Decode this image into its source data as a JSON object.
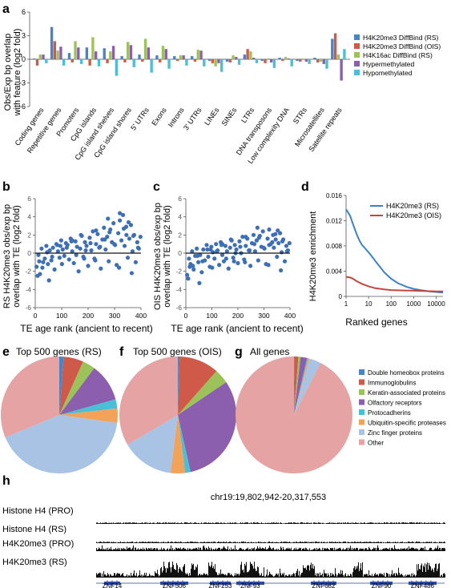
{
  "panel_labels": {
    "a": "a",
    "b": "b",
    "c": "c",
    "d": "d",
    "e": "e",
    "f": "f",
    "g": "g",
    "h": "h"
  },
  "colors": {
    "h4k20_diff_rs": "#4a84c4",
    "h4k20_diff_ois": "#cf5a4a",
    "h4k16ac_rs": "#9cc35a",
    "hypermeth": "#8c5fae",
    "hypometh": "#4bbfd6",
    "scatter": "#3d6fb6",
    "line_rs": "#3c82c6",
    "line_ois": "#c4463d",
    "track": "#111111",
    "gene": "#2c4aa0"
  },
  "chart_data": [
    {
      "id": "a",
      "type": "bar",
      "ylabel": "Obs/Exp bp overlap with feature (log2 fold)",
      "ylim": [
        -6,
        6
      ],
      "yticks": [
        -6,
        -3,
        0,
        3,
        6
      ],
      "categories": [
        "Coding genes",
        "Repetitive genes",
        "Promoters",
        "CpG islands",
        "CpG island shelves",
        "CpG island shores",
        "5' UTRs",
        "Exons",
        "Introns",
        "3' UTRs",
        "LINEs",
        "SINEs",
        "LTRs",
        "DNA transposons",
        "Low complexity DNA",
        "STRs",
        "Microsatellites",
        "Satellite repeats"
      ],
      "series": [
        {
          "name": "H4K20me3 DiffBind (RS)",
          "color": "#4a84c4",
          "values": [
            0.1,
            4.1,
            0.8,
            1.5,
            1.4,
            0.4,
            0.6,
            0.5,
            0.4,
            0.4,
            -0.2,
            -0.3,
            0.6,
            -0.2,
            0.2,
            -0.2,
            0.2,
            2.6
          ]
        },
        {
          "name": "H4K20me3 DiffBind (OIS)",
          "color": "#cf5a4a",
          "values": [
            -0.8,
            2.3,
            -0.4,
            -0.8,
            -0.5,
            -0.4,
            -0.3,
            -0.4,
            -0.2,
            -0.3,
            -0.5,
            -0.4,
            1.3,
            -0.5,
            -0.2,
            -0.3,
            -0.4,
            3.3
          ]
        },
        {
          "name": "H4K16ac DiffBind (RS)",
          "color": "#9cc35a",
          "values": [
            0.6,
            1.1,
            2.3,
            2.8,
            1.0,
            2.2,
            2.6,
            1.7,
            0.5,
            1.2,
            -0.9,
            0.5,
            1.0,
            0.1,
            0.3,
            0.1,
            -0.3,
            0.6
          ]
        },
        {
          "name": "Hypermethylated",
          "color": "#8c5fae",
          "values": [
            0.6,
            1.6,
            1.5,
            1.0,
            1.7,
            1.8,
            1.5,
            1.3,
            0.5,
            1.1,
            -0.5,
            0.3,
            0.2,
            -0.4,
            0.1,
            -0.3,
            -0.6,
            -2.7
          ]
        },
        {
          "name": "Hypomethylated",
          "color": "#4bbfd6",
          "values": [
            -0.5,
            -0.8,
            -0.6,
            -0.9,
            -2.1,
            -1.0,
            -1.7,
            -1.2,
            -0.8,
            -0.9,
            -1.6,
            -0.7,
            -0.5,
            -1.1,
            -0.9,
            -0.6,
            -1.2,
            1.3
          ]
        }
      ]
    },
    {
      "id": "b",
      "type": "scatter",
      "xlabel": "TE age rank (ancient to recent)",
      "ylabel": "RS H4K20me3 obs/exp bp overlap with TE (log2 fold)",
      "xlim": [
        0,
        400
      ],
      "ylim": [
        -6,
        6
      ],
      "xticks": [
        0,
        100,
        200,
        300,
        400
      ],
      "yticks": [
        -6,
        -4,
        -2,
        0,
        2,
        4,
        6
      ],
      "points_x": [
        5,
        12,
        18,
        24,
        30,
        36,
        42,
        48,
        55,
        61,
        67,
        73,
        80,
        86,
        92,
        98,
        104,
        110,
        116,
        122,
        128,
        134,
        140,
        146,
        152,
        158,
        164,
        170,
        176,
        182,
        188,
        194,
        200,
        206,
        212,
        218,
        224,
        230,
        236,
        242,
        248,
        254,
        260,
        266,
        272,
        278,
        284,
        290,
        296,
        302,
        308,
        314,
        320,
        326,
        332,
        338,
        344,
        350,
        356,
        362,
        368,
        374,
        380,
        386,
        392,
        398,
        9,
        27,
        45,
        64,
        83,
        101,
        119,
        137,
        155,
        173,
        191,
        209,
        227,
        245,
        263,
        281,
        299,
        317,
        335,
        353,
        371,
        389,
        15,
        52,
        95,
        140,
        185,
        230,
        275,
        320,
        345,
        365
      ],
      "points_y": [
        -1.5,
        -0.2,
        -2.3,
        0.5,
        -1.0,
        -0.6,
        0.8,
        -1.2,
        0.3,
        -0.8,
        0.6,
        -1.8,
        1.0,
        0.2,
        -0.5,
        1.4,
        0.4,
        -0.3,
        1.1,
        0.9,
        -0.7,
        1.6,
        0.2,
        -1.1,
        1.3,
        0.7,
        -2.0,
        0.5,
        1.9,
        -0.4,
        1.2,
        0.8,
        -1.4,
        1.7,
        0.3,
        2.4,
        -0.6,
        1.0,
        2.1,
        0.6,
        -1.7,
        1.5,
        2.8,
        0.4,
        1.8,
        -0.9,
        2.6,
        1.2,
        3.3,
        0.9,
        -1.3,
        2.2,
        3.6,
        1.4,
        4.2,
        0.8,
        2.9,
        -0.5,
        1.6,
        3.1,
        0.2,
        2.0,
        -1.0,
        1.2,
        0.5,
        1.8,
        -2.5,
        -1.6,
        0.1,
        -0.4,
        0.9,
        -1.2,
        0.6,
        1.3,
        -0.2,
        2.0,
        0.3,
        1.1,
        -0.8,
        0.7,
        1.5,
        2.3,
        1.0,
        -1.6,
        2.7,
        3.4,
        1.9,
        0.6,
        -0.9,
        -3.0,
        0.8,
        1.4,
        -0.6,
        2.5,
        3.8,
        4.4,
        2.0,
        -2.2
      ]
    },
    {
      "id": "c",
      "type": "scatter",
      "xlabel": "TE age rank (ancient to recent)",
      "ylabel": "OIS H4K20me3 obs/exp bp overlap with TE (log2 fold)",
      "xlim": [
        0,
        400
      ],
      "ylim": [
        -6,
        6
      ],
      "xticks": [
        0,
        100,
        200,
        300,
        400
      ],
      "yticks": [
        -6,
        -4,
        -2,
        0,
        2,
        4,
        6
      ],
      "points_x": [
        5,
        12,
        18,
        24,
        30,
        36,
        42,
        48,
        55,
        61,
        67,
        73,
        80,
        86,
        92,
        98,
        104,
        110,
        116,
        122,
        128,
        134,
        140,
        146,
        152,
        158,
        164,
        170,
        176,
        182,
        188,
        194,
        200,
        206,
        212,
        218,
        224,
        230,
        236,
        242,
        248,
        254,
        260,
        266,
        272,
        278,
        284,
        290,
        296,
        302,
        308,
        314,
        320,
        326,
        332,
        338,
        344,
        350,
        356,
        362,
        368,
        374,
        380,
        386,
        392,
        398,
        9,
        27,
        45,
        64,
        83,
        101,
        119,
        137,
        155,
        173,
        191,
        209,
        227,
        245,
        263,
        281,
        299,
        317,
        335,
        353,
        371,
        389,
        15,
        52,
        95,
        140,
        185,
        230,
        275,
        320,
        345,
        365
      ],
      "points_y": [
        -2.4,
        -0.6,
        -1.2,
        0.2,
        -1.8,
        -0.3,
        0.5,
        -1.0,
        -0.2,
        -2.1,
        0.4,
        -0.8,
        0.9,
        -0.4,
        -1.5,
        0.7,
        0.1,
        -0.6,
        1.0,
        0.3,
        -1.3,
        1.2,
        -0.2,
        -0.9,
        0.8,
        0.2,
        -1.7,
        0.6,
        1.4,
        -0.5,
        0.9,
        0.4,
        -1.1,
        1.3,
        0.0,
        1.8,
        -0.7,
        0.8,
        1.6,
        0.3,
        -1.4,
        1.1,
        2.0,
        0.2,
        1.4,
        -0.8,
        1.9,
        0.7,
        2.4,
        0.5,
        -1.2,
        1.6,
        2.6,
        1.0,
        1.2,
        0.6,
        2.1,
        -0.4,
        1.1,
        2.2,
        0.1,
        1.5,
        -0.9,
        0.8,
        0.3,
        1.1,
        -2.8,
        -1.4,
        -0.3,
        -0.9,
        0.4,
        -1.6,
        0.2,
        0.9,
        -0.6,
        1.5,
        0.0,
        0.7,
        -1.0,
        0.3,
        1.0,
        1.7,
        0.6,
        -1.3,
        2.0,
        2.5,
        1.3,
        0.2,
        -1.5,
        -3.3,
        0.4,
        1.0,
        -0.9,
        1.8,
        2.8,
        0.9,
        1.5,
        -1.9
      ]
    },
    {
      "id": "d",
      "type": "line",
      "xlabel": "Ranked genes",
      "ylabel": "H4K20me3 enrichment",
      "xscale": "log",
      "xlim": [
        1,
        20000
      ],
      "ylim": [
        0,
        0.016
      ],
      "xticks": [
        1,
        10,
        100,
        1000,
        10000
      ],
      "yticks": [
        0,
        0.004,
        0.008,
        0.012,
        0.016
      ],
      "ytick_labels": [
        "0",
        "0.004",
        "0.008",
        "0.012",
        "0.016"
      ],
      "series": [
        {
          "name": "H4K20me3 (RS)",
          "color": "#3c82c6",
          "x": [
            1,
            1.5,
            2,
            3,
            4,
            5,
            7,
            10,
            15,
            20,
            30,
            50,
            100,
            200,
            500,
            1000,
            2000,
            5000,
            10000,
            20000
          ],
          "y": [
            0.0138,
            0.0128,
            0.0115,
            0.0098,
            0.0088,
            0.0082,
            0.0076,
            0.007,
            0.0062,
            0.0056,
            0.0048,
            0.0038,
            0.0028,
            0.0021,
            0.0015,
            0.0012,
            0.001,
            0.0008,
            0.0007,
            0.0006
          ]
        },
        {
          "name": "H4K20me3 (OIS)",
          "color": "#c4463d",
          "x": [
            1,
            1.5,
            2,
            3,
            5,
            10,
            20,
            50,
            100,
            1000,
            10000,
            20000
          ],
          "y": [
            0.0031,
            0.003,
            0.0028,
            0.0024,
            0.002,
            0.0016,
            0.0013,
            0.0011,
            0.001,
            0.0009,
            0.0008,
            0.0008
          ]
        }
      ]
    },
    {
      "id": "e",
      "type": "pie",
      "title": "Top 500 genes (RS)",
      "slices": [
        {
          "label": "Double homeobox proteins",
          "value": 1.2,
          "color": "#4a84c4"
        },
        {
          "label": "Immunoglobulins",
          "value": 5.5,
          "color": "#cf5a4a"
        },
        {
          "label": "Keratin-associated proteins",
          "value": 3.5,
          "color": "#9cc35a"
        },
        {
          "label": "Olfactory receptors",
          "value": 10.5,
          "color": "#8c5fae"
        },
        {
          "label": "Protocadherins",
          "value": 2.5,
          "color": "#4bbfd6"
        },
        {
          "label": "Ubiquitin-specific proteases",
          "value": 4.0,
          "color": "#f3a25a"
        },
        {
          "label": "Zinc finger proteins",
          "value": 41.5,
          "color": "#a9c3e5"
        },
        {
          "label": "Other",
          "value": 31.3,
          "color": "#e6a3a3"
        }
      ]
    },
    {
      "id": "f",
      "type": "pie",
      "title": "Top 500 genes (OIS)",
      "slices": [
        {
          "label": "Double homeobox proteins",
          "value": 0.5,
          "color": "#4a84c4"
        },
        {
          "label": "Immunoglobulins",
          "value": 11.0,
          "color": "#cf5a4a"
        },
        {
          "label": "Keratin-associated proteins",
          "value": 4.0,
          "color": "#9cc35a"
        },
        {
          "label": "Olfactory receptors",
          "value": 31.0,
          "color": "#8c5fae"
        },
        {
          "label": "Protocadherins",
          "value": 1.5,
          "color": "#4bbfd6"
        },
        {
          "label": "Ubiquitin-specific proteases",
          "value": 4.0,
          "color": "#f3a25a"
        },
        {
          "label": "Zinc finger proteins",
          "value": 14.5,
          "color": "#a9c3e5"
        },
        {
          "label": "Other",
          "value": 33.5,
          "color": "#e6a3a3"
        }
      ]
    },
    {
      "id": "g",
      "type": "pie",
      "title": "All genes",
      "slices": [
        {
          "label": "Double homeobox proteins",
          "value": 0.2,
          "color": "#4a84c4"
        },
        {
          "label": "Immunoglobulins",
          "value": 1.0,
          "color": "#cf5a4a"
        },
        {
          "label": "Keratin-associated proteins",
          "value": 0.6,
          "color": "#9cc35a"
        },
        {
          "label": "Olfactory receptors",
          "value": 1.8,
          "color": "#8c5fae"
        },
        {
          "label": "Protocadherins",
          "value": 0.3,
          "color": "#4bbfd6"
        },
        {
          "label": "Ubiquitin-specific proteases",
          "value": 0.4,
          "color": "#f3a25a"
        },
        {
          "label": "Zinc finger proteins",
          "value": 3.2,
          "color": "#a9c3e5"
        },
        {
          "label": "Other",
          "value": 92.5,
          "color": "#e6a3a3"
        }
      ]
    }
  ],
  "pie_legend": [
    "Double homeobox proteins",
    "Immunoglobulins",
    "Keratin-associated proteins",
    "Olfactory receptors",
    "Protocadherins",
    "Ubiquitin-specific proteases",
    "Zinc finger proteins",
    "Other"
  ],
  "tracks": {
    "region": "chr19:19,802,942-20,317,553",
    "rows": [
      {
        "label": "Histone H4 (PRO)",
        "level": "low"
      },
      {
        "label": "Histone H4 (RS)",
        "level": "low"
      },
      {
        "label": "H4K20me3 (PRO)",
        "level": "medium"
      },
      {
        "label": "H4K20me3 (RS)",
        "level": "high"
      }
    ],
    "genes": [
      "ZNF14",
      "ZNF506",
      "ZNF253",
      "ZNF93",
      "ZNF682",
      "ZNF90",
      "ZNF486"
    ]
  }
}
